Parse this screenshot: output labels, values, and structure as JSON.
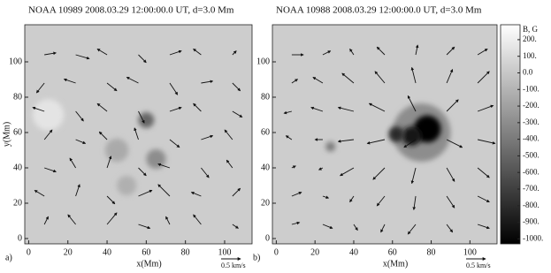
{
  "chart_data": [
    {
      "type": "vector-field",
      "title": "NOAA 10989 2008.03.29  12:00:00.0  UT, d=3.0 Mm",
      "panel_label": "a)",
      "xlabel": "x(Mm)",
      "ylabel": "y(Mm)",
      "xlim": [
        -2,
        114
      ],
      "ylim": [
        -3,
        121
      ],
      "xticks": [
        0,
        20,
        40,
        60,
        80,
        100
      ],
      "yticks": [
        0,
        20,
        40,
        60,
        80,
        100
      ],
      "scale_arrow": {
        "value": 0.5,
        "label": "0.5 km/s"
      },
      "spots": [
        {
          "x": 60,
          "y": 67,
          "r": 4,
          "b": -500
        },
        {
          "x": 65,
          "y": 45,
          "r": 5,
          "b": -300
        },
        {
          "x": 45,
          "y": 50,
          "r": 6,
          "b": -150
        },
        {
          "x": 10,
          "y": 70,
          "r": 8,
          "b": 150
        },
        {
          "x": 50,
          "y": 30,
          "r": 5,
          "b": -120
        }
      ],
      "grid_x": [
        8,
        24,
        40,
        56,
        72,
        88,
        104
      ],
      "grid_y": [
        8,
        24,
        40,
        56,
        72,
        88,
        104
      ],
      "u": [
        [
          0.1,
          -0.2,
          0.25,
          0.3,
          -0.1,
          -0.2,
          0.15
        ],
        [
          -0.25,
          0.1,
          0.2,
          0.35,
          -0.3,
          -0.25,
          0.2
        ],
        [
          0.3,
          -0.15,
          0.1,
          0.2,
          -0.3,
          0.2,
          -0.15
        ],
        [
          0.2,
          0.25,
          -0.2,
          -0.1,
          0.25,
          0.3,
          -0.2
        ],
        [
          -0.3,
          0.2,
          -0.25,
          0.15,
          0.3,
          -0.2,
          0.25
        ],
        [
          -0.2,
          -0.3,
          0.25,
          -0.3,
          0.2,
          0.3,
          0.2
        ],
        [
          0.3,
          0.35,
          -0.25,
          0.2,
          0.3,
          -0.2,
          0.1
        ]
      ],
      "v": [
        [
          0.2,
          0.25,
          0.3,
          -0.1,
          0.2,
          0.25,
          -0.1
        ],
        [
          0.15,
          0.3,
          -0.2,
          0.15,
          0.3,
          0.1,
          0.2
        ],
        [
          -0.1,
          0.25,
          0.3,
          -0.2,
          0.1,
          -0.25,
          0.2
        ],
        [
          0.25,
          -0.1,
          0.2,
          0.3,
          -0.2,
          0.1,
          0.25
        ],
        [
          0.1,
          -0.25,
          0.2,
          -0.3,
          0.1,
          0.2,
          -0.15
        ],
        [
          -0.25,
          0.1,
          -0.2,
          0.15,
          -0.3,
          0.05,
          -0.2
        ],
        [
          0.05,
          -0.1,
          0.15,
          -0.2,
          0.1,
          0.15,
          0.1
        ]
      ]
    },
    {
      "type": "vector-field",
      "title": "NOAA 10988 2008.03.29  12:00:00.0  UT, d=3.0 Mm",
      "panel_label": "b)",
      "xlabel": "x(Mm)",
      "xlim": [
        -2,
        114
      ],
      "ylim": [
        -3,
        121
      ],
      "xticks": [
        0,
        20,
        40,
        60,
        80,
        100
      ],
      "yticks": [
        0,
        20,
        40,
        60,
        80,
        100
      ],
      "scale_arrow": {
        "value": 0.5,
        "label": "0.5 km/s"
      },
      "spots": [
        {
          "x": 75,
          "y": 60,
          "r": 15,
          "b": -300
        },
        {
          "x": 78,
          "y": 62,
          "r": 7,
          "b": -1000
        },
        {
          "x": 70,
          "y": 58,
          "r": 5,
          "b": -900
        },
        {
          "x": 62,
          "y": 59,
          "r": 4,
          "b": -800
        },
        {
          "x": 28,
          "y": 52,
          "r": 2.5,
          "b": -400
        }
      ],
      "grid_x": [
        8,
        24,
        40,
        56,
        72,
        88,
        104
      ],
      "grid_y": [
        8,
        24,
        40,
        56,
        72,
        88,
        104
      ],
      "u": [
        [
          0.2,
          0.25,
          0.1,
          -0.1,
          -0.2,
          0.15,
          0.3
        ],
        [
          0.25,
          0.15,
          -0.1,
          -0.2,
          -0.05,
          0.2,
          0.3
        ],
        [
          0.1,
          -0.1,
          -0.35,
          -0.3,
          -0.1,
          0.2,
          0.3
        ],
        [
          -0.15,
          -0.2,
          -0.4,
          -0.45,
          -0.3,
          0.4,
          0.45
        ],
        [
          -0.2,
          -0.3,
          -0.4,
          -0.4,
          -0.2,
          0.3,
          0.4
        ],
        [
          0.15,
          -0.25,
          -0.3,
          -0.25,
          -0.1,
          0.15,
          0.3
        ],
        [
          0.3,
          0.2,
          -0.1,
          -0.2,
          0.05,
          0.2,
          0.25
        ]
      ],
      "v": [
        [
          0.05,
          -0.1,
          -0.15,
          -0.2,
          -0.25,
          -0.2,
          -0.1
        ],
        [
          0.1,
          -0.05,
          -0.15,
          -0.25,
          -0.35,
          -0.3,
          -0.15
        ],
        [
          0.05,
          -0.05,
          -0.2,
          -0.3,
          -0.4,
          -0.35,
          -0.25
        ],
        [
          0.1,
          0.0,
          -0.05,
          -0.1,
          -0.2,
          -0.2,
          -0.1
        ],
        [
          -0.05,
          0.1,
          0.1,
          0.2,
          0.4,
          0.3,
          0.15
        ],
        [
          0.1,
          0.15,
          0.25,
          0.3,
          0.4,
          0.35,
          0.3
        ],
        [
          0.0,
          0.1,
          0.15,
          0.2,
          0.25,
          0.2,
          0.15
        ]
      ],
      "colorbar": {
        "title": "B, G",
        "lim": [
          -1030,
          290
        ],
        "ticks": [
          {
            "value": 200,
            "label": "200."
          },
          {
            "value": 100,
            "label": "100."
          },
          {
            "value": 0,
            "label": "0.0"
          },
          {
            "value": -100,
            "label": "-100."
          },
          {
            "value": -200,
            "label": "-200."
          },
          {
            "value": -300,
            "label": "-300."
          },
          {
            "value": -400,
            "label": "-400."
          },
          {
            "value": -500,
            "label": "-500."
          },
          {
            "value": -600,
            "label": "-600."
          },
          {
            "value": -700,
            "label": "-700."
          },
          {
            "value": -800,
            "label": "-800."
          },
          {
            "value": -900,
            "label": "-900."
          },
          {
            "value": -1000,
            "label": "-1000."
          }
        ]
      }
    }
  ]
}
